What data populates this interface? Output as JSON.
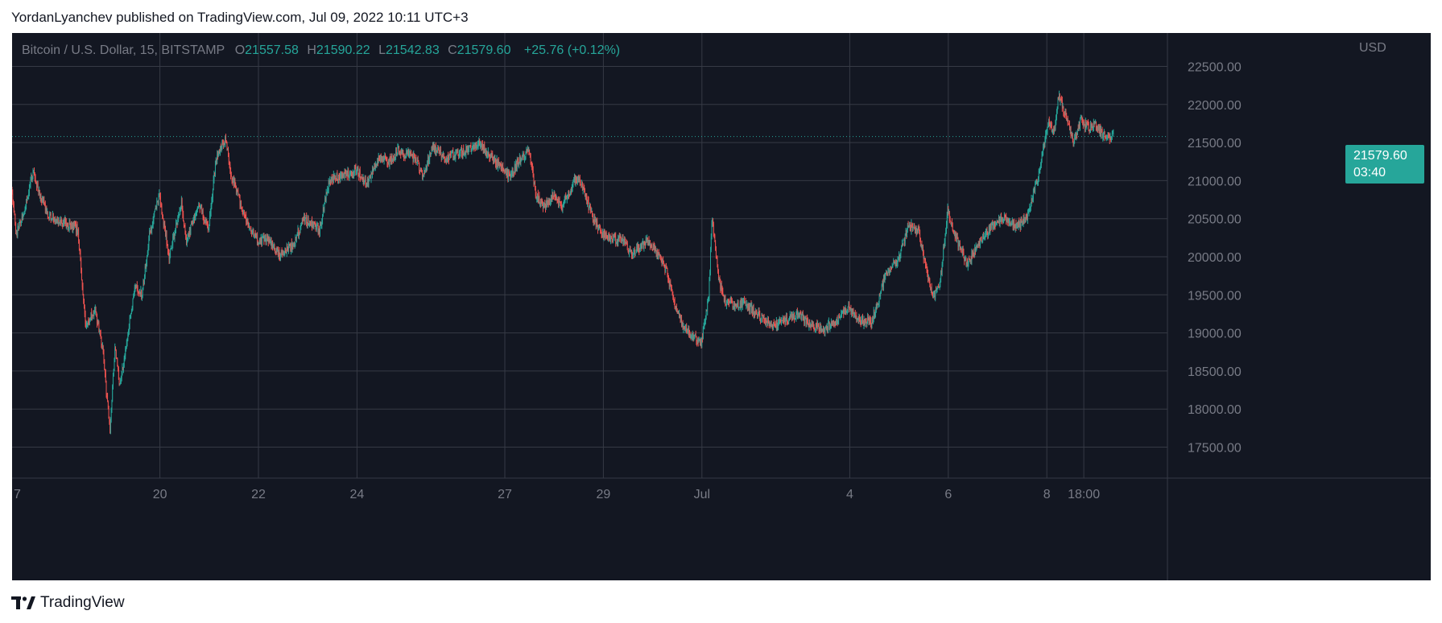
{
  "header": {
    "text": "YordanLyanchev published on TradingView.com, Jul 09, 2022 10:11 UTC+3"
  },
  "legend": {
    "symbol": "Bitcoin / U.S. Dollar, 15, BITSTAMP",
    "open_label": "O",
    "open": "21557.58",
    "high_label": "H",
    "high": "21590.22",
    "low_label": "L",
    "low": "21542.83",
    "close_label": "C",
    "close": "21579.60",
    "change": "+25.76 (+0.12%)"
  },
  "price_axis": {
    "currency": "USD",
    "last_price": "21579.60",
    "countdown": "03:40"
  },
  "footer": {
    "brand": "TradingView"
  },
  "colors": {
    "background": "#131722",
    "grid": "#363a45",
    "up": "#26a69a",
    "down": "#ef5350",
    "axis_text": "#787b86",
    "accent": "#26a69a"
  },
  "chart_data": {
    "type": "candlestick",
    "symbol": "BTCUSD",
    "interval": "15",
    "exchange": "BITSTAMP",
    "ylim": [
      17100,
      22900
    ],
    "yticks": [
      17500,
      18000,
      18500,
      19000,
      19500,
      20000,
      20500,
      21000,
      21500,
      22000,
      22500
    ],
    "ytick_labels": [
      "17500.00",
      "18000.00",
      "18500.00",
      "19000.00",
      "19500.00",
      "20000.00",
      "20500.00",
      "21000.00",
      "21500.00",
      "22000.00",
      "22500.00"
    ],
    "xticks": [
      {
        "label": "7",
        "day": 0.0
      },
      {
        "label": "20",
        "day": 3.0
      },
      {
        "label": "22",
        "day": 5.0
      },
      {
        "label": "24",
        "day": 7.0
      },
      {
        "label": "27",
        "day": 10.0
      },
      {
        "label": "29",
        "day": 12.0
      },
      {
        "label": "Jul",
        "day": 14.0
      },
      {
        "label": "4",
        "day": 17.0
      },
      {
        "label": "6",
        "day": 19.0
      },
      {
        "label": "8",
        "day": 21.0
      },
      {
        "label": "18:00",
        "day": 21.75
      }
    ],
    "price_path": [
      [
        0.0,
        20900
      ],
      [
        0.1,
        20300
      ],
      [
        0.3,
        20700
      ],
      [
        0.45,
        21150
      ],
      [
        0.55,
        20850
      ],
      [
        0.75,
        20550
      ],
      [
        1.0,
        20450
      ],
      [
        1.25,
        20400
      ],
      [
        1.35,
        20350
      ],
      [
        1.5,
        19100
      ],
      [
        1.7,
        19300
      ],
      [
        1.85,
        18800
      ],
      [
        2.0,
        17700
      ],
      [
        2.1,
        18800
      ],
      [
        2.2,
        18300
      ],
      [
        2.3,
        18700
      ],
      [
        2.5,
        19600
      ],
      [
        2.65,
        19500
      ],
      [
        2.8,
        20300
      ],
      [
        3.0,
        20800
      ],
      [
        3.2,
        20000
      ],
      [
        3.45,
        20700
      ],
      [
        3.55,
        20200
      ],
      [
        3.7,
        20500
      ],
      [
        3.8,
        20700
      ],
      [
        4.0,
        20350
      ],
      [
        4.15,
        21300
      ],
      [
        4.35,
        21550
      ],
      [
        4.45,
        21100
      ],
      [
        4.6,
        20800
      ],
      [
        4.75,
        20500
      ],
      [
        5.0,
        20200
      ],
      [
        5.2,
        20250
      ],
      [
        5.45,
        20000
      ],
      [
        5.7,
        20150
      ],
      [
        5.95,
        20500
      ],
      [
        6.25,
        20350
      ],
      [
        6.45,
        21000
      ],
      [
        6.7,
        21050
      ],
      [
        7.0,
        21150
      ],
      [
        7.2,
        20950
      ],
      [
        7.45,
        21300
      ],
      [
        7.65,
        21250
      ],
      [
        7.85,
        21400
      ],
      [
        8.0,
        21350
      ],
      [
        8.2,
        21300
      ],
      [
        8.35,
        21050
      ],
      [
        8.55,
        21450
      ],
      [
        8.8,
        21300
      ],
      [
        9.0,
        21350
      ],
      [
        9.25,
        21400
      ],
      [
        9.45,
        21500
      ],
      [
        9.7,
        21350
      ],
      [
        9.9,
        21200
      ],
      [
        10.1,
        21050
      ],
      [
        10.35,
        21300
      ],
      [
        10.5,
        21400
      ],
      [
        10.65,
        20800
      ],
      [
        10.8,
        20650
      ],
      [
        11.0,
        20800
      ],
      [
        11.15,
        20650
      ],
      [
        11.35,
        20850
      ],
      [
        11.45,
        21050
      ],
      [
        11.6,
        20900
      ],
      [
        11.8,
        20500
      ],
      [
        12.0,
        20300
      ],
      [
        12.2,
        20250
      ],
      [
        12.4,
        20200
      ],
      [
        12.6,
        20050
      ],
      [
        12.9,
        20200
      ],
      [
        13.1,
        20050
      ],
      [
        13.3,
        19800
      ],
      [
        13.45,
        19400
      ],
      [
        13.65,
        19050
      ],
      [
        13.85,
        18950
      ],
      [
        14.0,
        18850
      ],
      [
        14.15,
        19500
      ],
      [
        14.22,
        20500
      ],
      [
        14.35,
        19700
      ],
      [
        14.5,
        19400
      ],
      [
        14.7,
        19350
      ],
      [
        14.9,
        19400
      ],
      [
        15.2,
        19200
      ],
      [
        15.5,
        19100
      ],
      [
        15.8,
        19200
      ],
      [
        16.0,
        19250
      ],
      [
        16.2,
        19100
      ],
      [
        16.5,
        19050
      ],
      [
        16.8,
        19200
      ],
      [
        17.0,
        19350
      ],
      [
        17.2,
        19150
      ],
      [
        17.45,
        19150
      ],
      [
        17.6,
        19450
      ],
      [
        17.75,
        19800
      ],
      [
        18.0,
        19950
      ],
      [
        18.2,
        20400
      ],
      [
        18.4,
        20350
      ],
      [
        18.55,
        19900
      ],
      [
        18.7,
        19450
      ],
      [
        18.85,
        19700
      ],
      [
        19.0,
        20600
      ],
      [
        19.2,
        20200
      ],
      [
        19.4,
        19900
      ],
      [
        19.65,
        20200
      ],
      [
        19.9,
        20400
      ],
      [
        20.1,
        20500
      ],
      [
        20.4,
        20400
      ],
      [
        20.6,
        20500
      ],
      [
        20.85,
        21100
      ],
      [
        21.05,
        21800
      ],
      [
        21.15,
        21600
      ],
      [
        21.25,
        22100
      ],
      [
        21.4,
        21850
      ],
      [
        21.55,
        21500
      ],
      [
        21.7,
        21800
      ],
      [
        21.85,
        21700
      ],
      [
        22.0,
        21750
      ],
      [
        22.15,
        21600
      ],
      [
        22.35,
        21580
      ]
    ]
  }
}
